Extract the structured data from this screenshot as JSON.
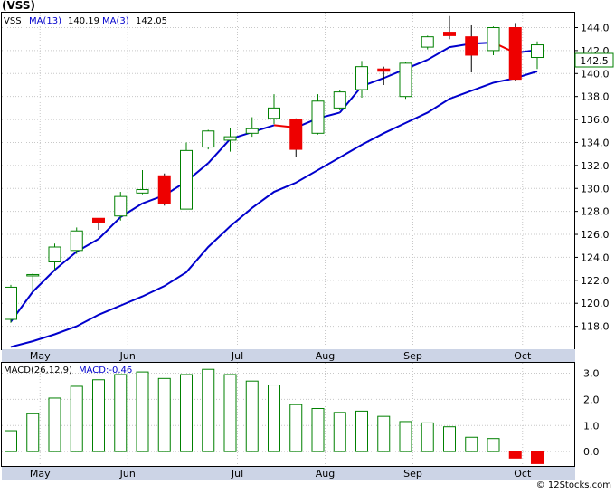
{
  "ticker": "(VSS)",
  "credit": "© 12Stocks.com",
  "colors": {
    "up_candle": "#008000",
    "down_candle": "#ee0000",
    "ma_slow": "#0000cc",
    "ma_fast": "#0000cc",
    "ma_fast_tail": "#ee0000",
    "macd_bar_pos": "#008000",
    "macd_bar_neg": "#ee0000",
    "axis_band": "#ccd4e6",
    "grid": "#c8c8c8"
  },
  "price_legend": {
    "symbol": "VSS",
    "ma_slow_label": "MA(13)",
    "ma_slow_value": "140.19",
    "ma_fast_label": "MA(3)",
    "ma_fast_value": "142.05"
  },
  "price_axis": {
    "ticks": [
      "118.0",
      "120.0",
      "122.0",
      "124.0",
      "126.0",
      "128.0",
      "130.0",
      "132.0",
      "134.0",
      "136.0",
      "138.0",
      "140.0",
      "142.0",
      "144.0"
    ],
    "last_price_label": "142.5"
  },
  "macd_legend": {
    "label": "MACD(26,12,9)",
    "value_label": "MACD:-0.46"
  },
  "macd_axis": {
    "ticks": [
      "0.0",
      "1.0",
      "2.0",
      "3.0"
    ]
  },
  "month_labels": [
    "May",
    "Jun",
    "Jul",
    "Aug",
    "Sep",
    "Oct"
  ],
  "chart_data": [
    {
      "type": "candlestick",
      "title": "(VSS)",
      "period": "weekly",
      "ylim": [
        116.0,
        145.3
      ],
      "x_labels": [
        "May",
        "Jun",
        "Jul",
        "Aug",
        "Sep",
        "Oct"
      ],
      "x_label_week_index": [
        1,
        5,
        10,
        14,
        18,
        23
      ],
      "candles": [
        {
          "o": 118.6,
          "h": 121.6,
          "l": 118.3,
          "c": 121.4
        },
        {
          "o": 122.4,
          "h": 122.6,
          "l": 121.0,
          "c": 122.5
        },
        {
          "o": 123.6,
          "h": 125.2,
          "l": 122.9,
          "c": 124.9
        },
        {
          "o": 124.6,
          "h": 126.6,
          "l": 124.3,
          "c": 126.3
        },
        {
          "o": 127.4,
          "h": 127.4,
          "l": 126.4,
          "c": 127.0
        },
        {
          "o": 127.6,
          "h": 129.7,
          "l": 127.2,
          "c": 129.3
        },
        {
          "o": 129.6,
          "h": 131.6,
          "l": 129.5,
          "c": 129.9
        },
        {
          "o": 131.1,
          "h": 131.3,
          "l": 128.5,
          "c": 128.7
        },
        {
          "o": 128.2,
          "h": 134.0,
          "l": 128.2,
          "c": 133.3
        },
        {
          "o": 133.6,
          "h": 135.1,
          "l": 133.4,
          "c": 135.0
        },
        {
          "o": 134.2,
          "h": 135.3,
          "l": 133.2,
          "c": 134.5
        },
        {
          "o": 134.8,
          "h": 136.2,
          "l": 134.5,
          "c": 135.2
        },
        {
          "o": 136.1,
          "h": 138.2,
          "l": 135.6,
          "c": 137.0
        },
        {
          "o": 136.0,
          "h": 136.1,
          "l": 132.7,
          "c": 133.4
        },
        {
          "o": 134.8,
          "h": 138.2,
          "l": 134.7,
          "c": 137.6
        },
        {
          "o": 137.0,
          "h": 138.6,
          "l": 136.8,
          "c": 138.4
        },
        {
          "o": 138.6,
          "h": 141.1,
          "l": 137.9,
          "c": 140.6
        },
        {
          "o": 140.4,
          "h": 140.6,
          "l": 139.0,
          "c": 140.2
        },
        {
          "o": 138.0,
          "h": 141.0,
          "l": 137.8,
          "c": 140.9
        },
        {
          "o": 142.3,
          "h": 143.3,
          "l": 142.1,
          "c": 143.2
        },
        {
          "o": 143.6,
          "h": 145.0,
          "l": 143.0,
          "c": 143.3
        },
        {
          "o": 143.2,
          "h": 144.2,
          "l": 140.1,
          "c": 141.6
        },
        {
          "o": 142.0,
          "h": 144.1,
          "l": 141.6,
          "c": 144.0
        },
        {
          "o": 144.0,
          "h": 144.4,
          "l": 139.4,
          "c": 139.5
        },
        {
          "o": 141.4,
          "h": 142.8,
          "l": 140.4,
          "c": 142.5
        }
      ],
      "series": [
        {
          "name": "MA(13)",
          "values": [
            116.2,
            116.7,
            117.3,
            118.0,
            119.0,
            119.8,
            120.6,
            121.5,
            122.7,
            124.9,
            126.7,
            128.3,
            129.7,
            130.5,
            131.6,
            132.7,
            133.8,
            134.8,
            135.7,
            136.6,
            137.8,
            138.5,
            139.2,
            139.6,
            140.19
          ]
        },
        {
          "name": "MA(3)",
          "values": [
            118.4,
            121.0,
            122.9,
            124.5,
            125.6,
            127.5,
            128.7,
            129.4,
            130.6,
            132.2,
            134.3,
            134.9,
            135.5,
            135.3,
            136.1,
            136.6,
            138.9,
            139.6,
            140.4,
            141.2,
            142.3,
            142.6,
            142.7,
            141.8,
            142.05
          ]
        }
      ]
    },
    {
      "type": "bar",
      "title": "MACD(26,12,9)",
      "ylim": [
        -0.55,
        3.4
      ],
      "values": [
        0.8,
        1.45,
        2.05,
        2.5,
        2.75,
        2.95,
        3.05,
        2.8,
        2.95,
        3.15,
        2.95,
        2.7,
        2.55,
        1.8,
        1.65,
        1.5,
        1.55,
        1.35,
        1.15,
        1.1,
        0.95,
        0.55,
        0.5,
        -0.25,
        -0.46
      ]
    }
  ]
}
